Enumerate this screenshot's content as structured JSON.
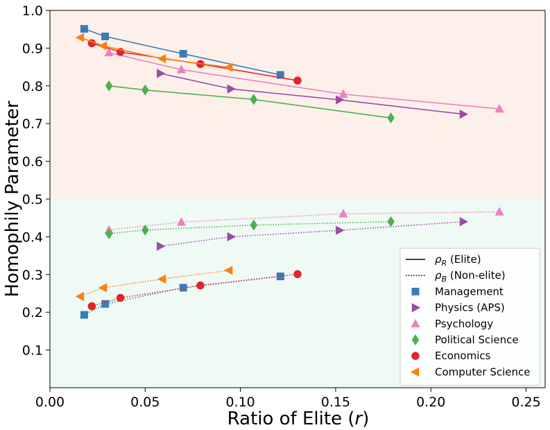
{
  "chart_data": {
    "type": "line",
    "xlabel": "Ratio of Elite (r)",
    "ylabel": "Homophily Parameter",
    "xlim": [
      0.0,
      0.26
    ],
    "ylim": [
      0.0,
      1.0
    ],
    "xticks": [
      0.0,
      0.05,
      0.1,
      0.15,
      0.2,
      0.25
    ],
    "xtick_labels": [
      "0.00",
      "0.05",
      "0.10",
      "0.15",
      "0.20",
      "0.25"
    ],
    "yticks": [
      0.1,
      0.2,
      0.3,
      0.4,
      0.5,
      0.6,
      0.7,
      0.8,
      0.9,
      1.0
    ],
    "ytick_labels": [
      "0.1",
      "0.2",
      "0.3",
      "0.4",
      "0.5",
      "0.6",
      "0.7",
      "0.8",
      "0.9",
      "1.0"
    ],
    "background_regions": [
      {
        "y_from": 0.5,
        "y_to": 1.0,
        "color": "#fdf0ea"
      },
      {
        "y_from": 0.0,
        "y_to": 0.5,
        "color": "#effaf5"
      }
    ],
    "legend_position": "lower-right",
    "line_styles": [
      {
        "label": "ρ_R (Elite)",
        "label_main": "ρ",
        "label_sub": "R",
        "label_rest": " (Elite)",
        "style": "solid"
      },
      {
        "label": "ρ_B (Non-elite)",
        "label_main": "ρ",
        "label_sub": "B",
        "label_rest": " (Non-elite)",
        "style": "dotted"
      }
    ],
    "series": [
      {
        "name": "Management",
        "color": "#3a7cb8",
        "marker": "square",
        "x": [
          0.018,
          0.029,
          0.07,
          0.121
        ],
        "elite": [
          0.951,
          0.931,
          0.885,
          0.829
        ],
        "nonelite": [
          0.193,
          0.222,
          0.265,
          0.295
        ]
      },
      {
        "name": "Physics (APS)",
        "color": "#9a4ca6",
        "marker": "triangle-right",
        "x": [
          0.058,
          0.095,
          0.152,
          0.217
        ],
        "elite": [
          0.833,
          0.792,
          0.763,
          0.725
        ],
        "nonelite": [
          0.375,
          0.4,
          0.417,
          0.44
        ]
      },
      {
        "name": "Psychology",
        "color": "#f07fc0",
        "marker": "triangle-up",
        "x": [
          0.031,
          0.069,
          0.154,
          0.236
        ],
        "elite": [
          0.888,
          0.843,
          0.778,
          0.739
        ],
        "nonelite": [
          0.418,
          0.439,
          0.461,
          0.466
        ]
      },
      {
        "name": "Political Science",
        "color": "#4caf4f",
        "marker": "diamond",
        "x": [
          0.031,
          0.05,
          0.107,
          0.179
        ],
        "elite": [
          0.8,
          0.789,
          0.764,
          0.715
        ],
        "nonelite": [
          0.408,
          0.418,
          0.431,
          0.44
        ]
      },
      {
        "name": "Economics",
        "color": "#e0262a",
        "marker": "circle",
        "x": [
          0.022,
          0.037,
          0.079,
          0.13
        ],
        "elite": [
          0.913,
          0.89,
          0.858,
          0.814
        ],
        "nonelite": [
          0.216,
          0.238,
          0.271,
          0.301
        ]
      },
      {
        "name": "Computer Science",
        "color": "#ff7f0e",
        "marker": "triangle-left",
        "x": [
          0.016,
          0.028,
          0.059,
          0.094
        ],
        "elite": [
          0.928,
          0.906,
          0.872,
          0.849
        ],
        "nonelite": [
          0.242,
          0.265,
          0.288,
          0.311
        ]
      }
    ]
  }
}
